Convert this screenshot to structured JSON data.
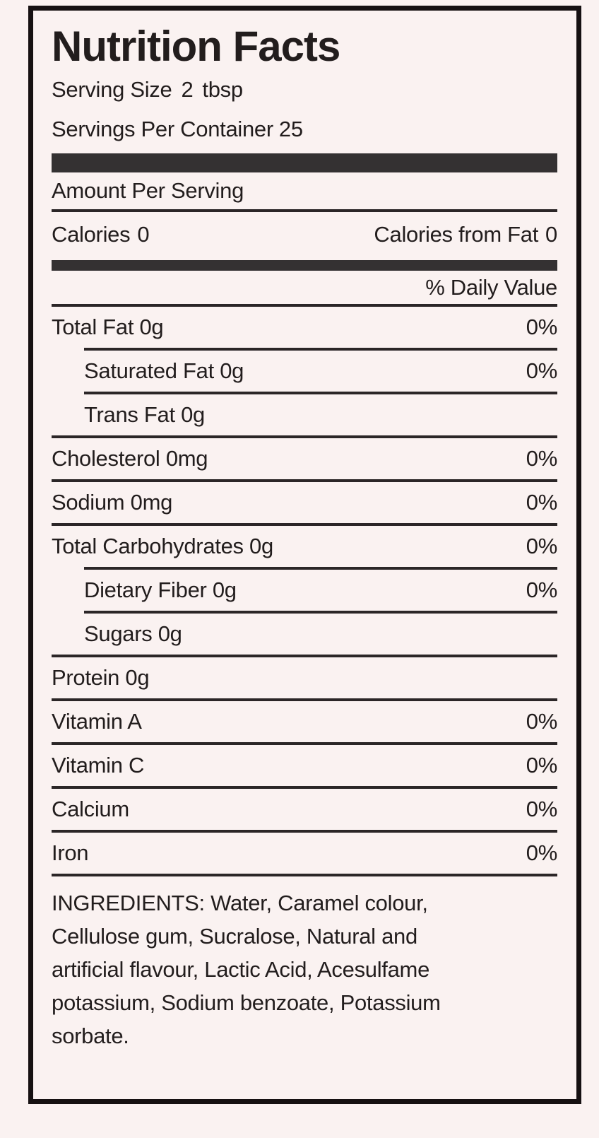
{
  "colors": {
    "background": "#faf2f1",
    "border": "#161112",
    "text": "#221d1d",
    "thick_bar": "#343132",
    "thin_line": "#2b2627"
  },
  "title": "Nutrition Facts",
  "serving": {
    "size_label": "Serving Size",
    "size_value": "2",
    "size_unit": "tbsp",
    "per_container_label": "Servings Per Container",
    "per_container_value": "25"
  },
  "amount_per_serving": "Amount Per Serving",
  "calories": {
    "label": "Calories",
    "value": "0",
    "from_fat_label": "Calories from Fat",
    "from_fat_value": "0"
  },
  "daily_value_header": "% Daily Value",
  "nutrients": [
    {
      "label": "Total Fat 0g",
      "dv": "0%"
    },
    {
      "label": "Saturated Fat 0g",
      "dv": "0%"
    },
    {
      "label": "Trans Fat 0g",
      "dv": ""
    },
    {
      "label": "Cholesterol 0mg",
      "dv": "0%"
    },
    {
      "label": "Sodium 0mg",
      "dv": "0%"
    },
    {
      "label": "Total Carbohydrates 0g",
      "dv": "0%"
    },
    {
      "label": "Dietary Fiber 0g",
      "dv": "0%"
    },
    {
      "label": "Sugars 0g",
      "dv": ""
    },
    {
      "label": "Protein 0g",
      "dv": ""
    },
    {
      "label": "Vitamin A",
      "dv": "0%"
    },
    {
      "label": "Vitamin C",
      "dv": "0%"
    },
    {
      "label": "Calcium",
      "dv": "0%"
    },
    {
      "label": "Iron",
      "dv": "0%"
    }
  ],
  "ingredients_lines": [
    "INGREDIENTS: Water, Caramel colour,",
    "Cellulose gum, Sucralose, Natural and",
    "artificial flavour, Lactic Acid, Acesulfame",
    "potassium, Sodium benzoate, Potassium",
    "sorbate."
  ]
}
